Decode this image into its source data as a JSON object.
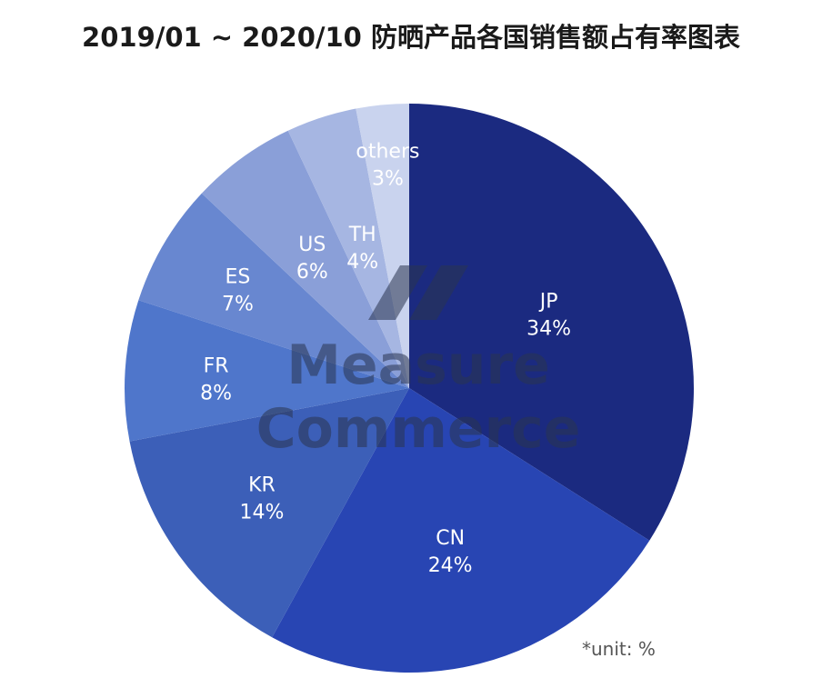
{
  "title": "2019/01 ~ 2020/10 防晒产品各国销售额占有率图表",
  "footnote": "*unit: %",
  "watermark": {
    "line1": "Measure",
    "line2": "Commerce"
  },
  "chart_data": {
    "type": "pie",
    "title": "2019/01 ~ 2020/10 防晒产品各国销售额占有率图表",
    "unit": "%",
    "start_angle_deg": 0,
    "direction": "clockwise",
    "slices": [
      {
        "label": "JP",
        "value": 34,
        "percent_label": "34%",
        "color": "#1b2a80"
      },
      {
        "label": "CN",
        "value": 24,
        "percent_label": "24%",
        "color": "#2845b3"
      },
      {
        "label": "KR",
        "value": 14,
        "percent_label": "14%",
        "color": "#3c5fb8"
      },
      {
        "label": "FR",
        "value": 8,
        "percent_label": "8%",
        "color": "#4f76cb"
      },
      {
        "label": "ES",
        "value": 7,
        "percent_label": "7%",
        "color": "#6887d0"
      },
      {
        "label": "US",
        "value": 6,
        "percent_label": "6%",
        "color": "#8a9fd8"
      },
      {
        "label": "TH",
        "value": 4,
        "percent_label": "4%",
        "color": "#a6b6e2"
      },
      {
        "label": "others",
        "value": 3,
        "percent_label": "3%",
        "color": "#c9d3ee"
      }
    ]
  }
}
